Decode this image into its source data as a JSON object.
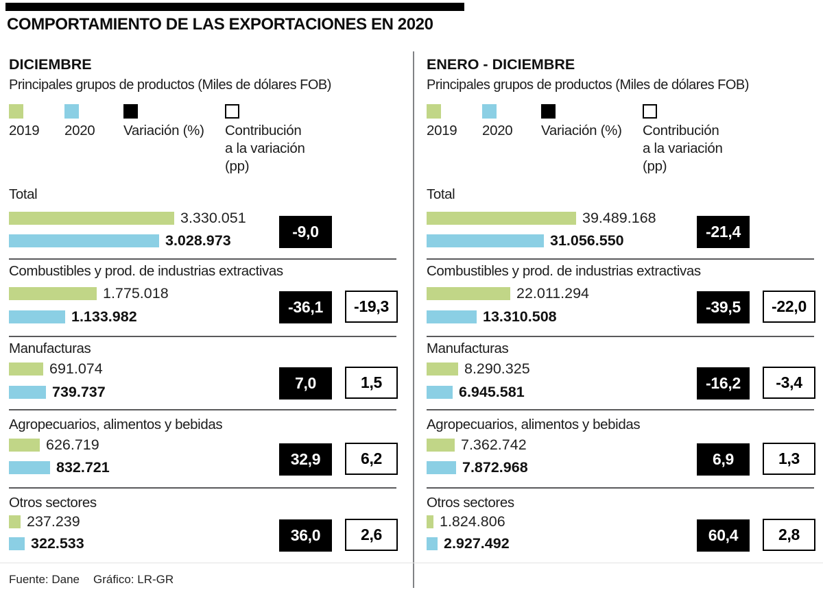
{
  "title": "COMPORTAMIENTO DE LAS EXPORTACIONES EN 2020",
  "legend": [
    {
      "swatch": "green-2019",
      "label": "2019"
    },
    {
      "swatch": "blue-2020",
      "label": "2020"
    },
    {
      "swatch": "black-variation",
      "label": "Variación (%)"
    },
    {
      "swatch": "white-contribution",
      "label": "Contribución\na la variación\n(pp)"
    }
  ],
  "colors": {
    "green_2019": "#c1d687",
    "blue_2020": "#8bcfe4",
    "badge_black": "#000000",
    "separator_gray": "#59595b",
    "divider_gray": "#808285"
  },
  "footer": {
    "source": "Fuente: Dane",
    "credit": "Gráfico: LR-GR"
  },
  "chart_data": [
    {
      "type": "bar",
      "title": "DICIEMBRE",
      "subtitle": "Principales grupos de productos (Miles de dólares FOB)",
      "unit": "Miles de dólares FOB",
      "legend_entries": [
        "2019",
        "2020",
        "Variación (%)",
        "Contribución a la variación (pp)"
      ],
      "categories": [
        "Total",
        "Combustibles y prod. de industrias extractivas",
        "Manufacturas",
        "Agropecuarios, alimentos y bebidas",
        "Otros sectores"
      ],
      "series": [
        {
          "name": "2019",
          "values": [
            3330051,
            1775018,
            691074,
            626719,
            237239
          ]
        },
        {
          "name": "2020",
          "values": [
            3028973,
            1133982,
            739737,
            832721,
            322533
          ]
        }
      ],
      "variation_pct": [
        "-9,0",
        "-36,1",
        "7,0",
        "32,9",
        "36,0"
      ],
      "contribution_pp": [
        null,
        "-19,3",
        "1,5",
        "6,2",
        "2,6"
      ]
    },
    {
      "type": "bar",
      "title": "ENERO - DICIEMBRE",
      "subtitle": "Principales grupos de productos (Miles de dólares FOB)",
      "unit": "Miles de dólares FOB",
      "legend_entries": [
        "2019",
        "2020",
        "Variación (%)",
        "Contribución a la variación (pp)"
      ],
      "categories": [
        "Total",
        "Combustibles y prod. de industrias extractivas",
        "Manufacturas",
        "Agropecuarios, alimentos y bebidas",
        "Otros sectores"
      ],
      "series": [
        {
          "name": "2019",
          "values": [
            39489168,
            22011294,
            8290325,
            7362742,
            1824806
          ]
        },
        {
          "name": "2020",
          "values": [
            31056550,
            13310508,
            6945581,
            7872968,
            2927492
          ]
        }
      ],
      "variation_pct": [
        "-21,4",
        "-39,5",
        "-16,2",
        "6,9",
        "60,4"
      ],
      "contribution_pp": [
        null,
        "-22,0",
        "-3,4",
        "1,3",
        "2,8"
      ]
    }
  ]
}
